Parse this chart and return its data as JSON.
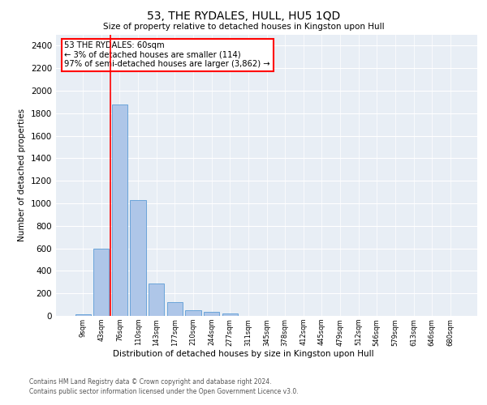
{
  "title": "53, THE RYDALES, HULL, HU5 1QD",
  "subtitle": "Size of property relative to detached houses in Kingston upon Hull",
  "xlabel": "Distribution of detached houses by size in Kingston upon Hull",
  "ylabel": "Number of detached properties",
  "bar_labels": [
    "9sqm",
    "43sqm",
    "76sqm",
    "110sqm",
    "143sqm",
    "177sqm",
    "210sqm",
    "244sqm",
    "277sqm",
    "311sqm",
    "345sqm",
    "378sqm",
    "412sqm",
    "445sqm",
    "479sqm",
    "512sqm",
    "546sqm",
    "579sqm",
    "613sqm",
    "646sqm",
    "680sqm"
  ],
  "bar_values": [
    15,
    600,
    1880,
    1030,
    290,
    120,
    50,
    35,
    20,
    0,
    0,
    0,
    0,
    0,
    0,
    0,
    0,
    0,
    0,
    0,
    0
  ],
  "bar_color": "#aec6e8",
  "bar_edge_color": "#5b9bd5",
  "red_line_x": 1.5,
  "annotation_box_text": "53 THE RYDALES: 60sqm\n← 3% of detached houses are smaller (114)\n97% of semi-detached houses are larger (3,862) →",
  "ylim": [
    0,
    2500
  ],
  "yticks": [
    0,
    200,
    400,
    600,
    800,
    1000,
    1200,
    1400,
    1600,
    1800,
    2000,
    2200,
    2400
  ],
  "background_color": "#e8eef5",
  "footer1": "Contains HM Land Registry data © Crown copyright and database right 2024.",
  "footer2": "Contains public sector information licensed under the Open Government Licence v3.0."
}
